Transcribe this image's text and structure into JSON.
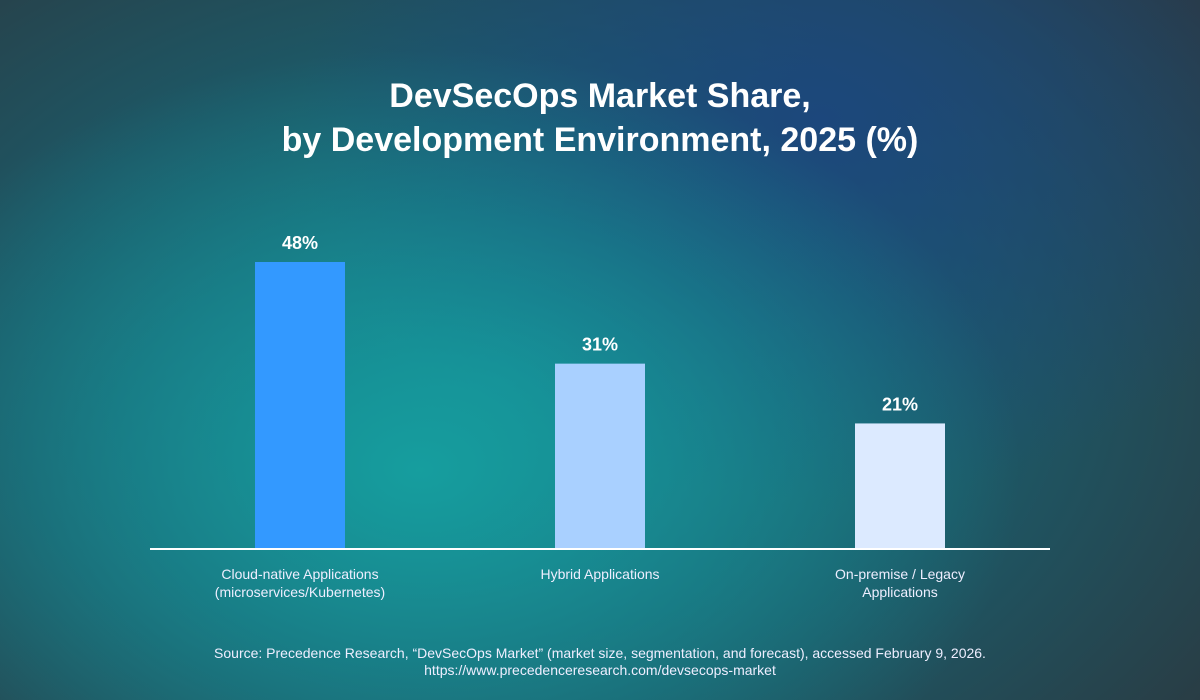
{
  "chart_data": {
    "type": "bar",
    "title": "DevSecOps Market Share,\nby Development Environment, 2025 (%)",
    "title_lines": [
      "DevSecOps Market Share,",
      "by Development Environment, 2025 (%)"
    ],
    "categories": [
      "Cloud-native Applications (microservices/Kubernetes)",
      "Hybrid Applications",
      "On-premise / Legacy Applications"
    ],
    "category_lines": [
      [
        "Cloud-native Applications",
        "(microservices/Kubernetes)"
      ],
      [
        "Hybrid Applications"
      ],
      [
        "On-premise / Legacy",
        "Applications"
      ]
    ],
    "values": [
      48,
      31,
      21
    ],
    "data_labels": [
      "48%",
      "31%",
      "21%"
    ],
    "colors": [
      "#3399ff",
      "#a9d0ff",
      "#dceaff"
    ],
    "xlabel": "",
    "ylabel": "",
    "ylim": [
      0,
      48
    ],
    "grid": false,
    "legend": "none"
  },
  "source": {
    "line1": "Source: Precedence Research, “DevSecOps Market” (market size, segmentation, and forecast), accessed February 9, 2026.",
    "line2": "https://www.precedenceresearch.com/devsecops-market"
  }
}
